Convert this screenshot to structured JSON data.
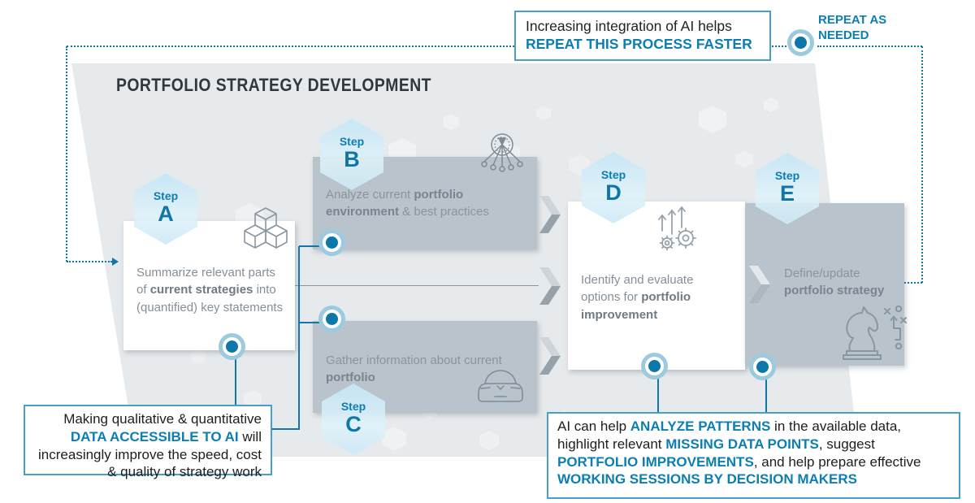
{
  "title": "PORTFOLIO STRATEGY DEVELOPMENT",
  "colors": {
    "accent_blue": "#0c7eb3",
    "connector_blue": "#1177a9",
    "dot_blue": "#0d77a9",
    "dot_ring": "#9ccade",
    "gray_box": "#b9c3cb",
    "backdrop": "#e7eaec",
    "callout_border": "#48a0c8",
    "title_color": "#31373d"
  },
  "top_callout": {
    "line1": "Increasing integration of AI helps",
    "line2": "REPEAT THIS PROCESS FASTER"
  },
  "repeat_label": {
    "line1": "REPEAT AS",
    "line2": "NEEDED"
  },
  "steps": {
    "a": {
      "label": "Step",
      "letter": "A",
      "icon": "cubes-icon",
      "text": [
        {
          "t": "Summarize relevant parts of "
        },
        {
          "t": "current strategies",
          "b": true
        },
        {
          "t": " into (quantified) key statements"
        }
      ]
    },
    "b": {
      "label": "Step",
      "letter": "B",
      "icon": "network-icon",
      "text": [
        {
          "t": "Analyze current "
        },
        {
          "t": "portfolio environment",
          "b": true
        },
        {
          "t": " & best practices"
        }
      ]
    },
    "c": {
      "label": "Step",
      "letter": "C",
      "icon": "car-icon",
      "text": [
        {
          "t": "Gather information about current "
        },
        {
          "t": "portfolio",
          "b": true
        }
      ]
    },
    "d": {
      "label": "Step",
      "letter": "D",
      "icon": "gears-arrows-icon",
      "text": [
        {
          "t": "Identify and evaluate options for "
        },
        {
          "t": "portfolio improvement",
          "b": true
        }
      ]
    },
    "e": {
      "label": "Step",
      "letter": "E",
      "icon": "knight-strategy-icon",
      "text": [
        {
          "t": "Define/update "
        },
        {
          "t": "portfolio strategy",
          "b": true
        }
      ]
    }
  },
  "left_callout": {
    "segments": [
      {
        "t": "Making qualitative & quantitative "
      },
      {
        "t": "DATA ACCESSIBLE TO AI",
        "hl": true
      },
      {
        "t": " will increasingly improve the speed, cost & quality of strategy work"
      }
    ]
  },
  "right_callout": {
    "segments": [
      {
        "t": "AI can help "
      },
      {
        "t": "ANALYZE PATTERNS",
        "hl": true
      },
      {
        "t": " in the available data, highlight relevant "
      },
      {
        "t": "MISSING DATA POINTS",
        "hl": true
      },
      {
        "t": ", suggest "
      },
      {
        "t": "PORTFOLIO IMPROVEMENTS",
        "hl": true
      },
      {
        "t": ", and help prepare effective "
      },
      {
        "t": "WORKING SESSIONS BY DECISION MAKERS",
        "hl": true
      }
    ]
  }
}
